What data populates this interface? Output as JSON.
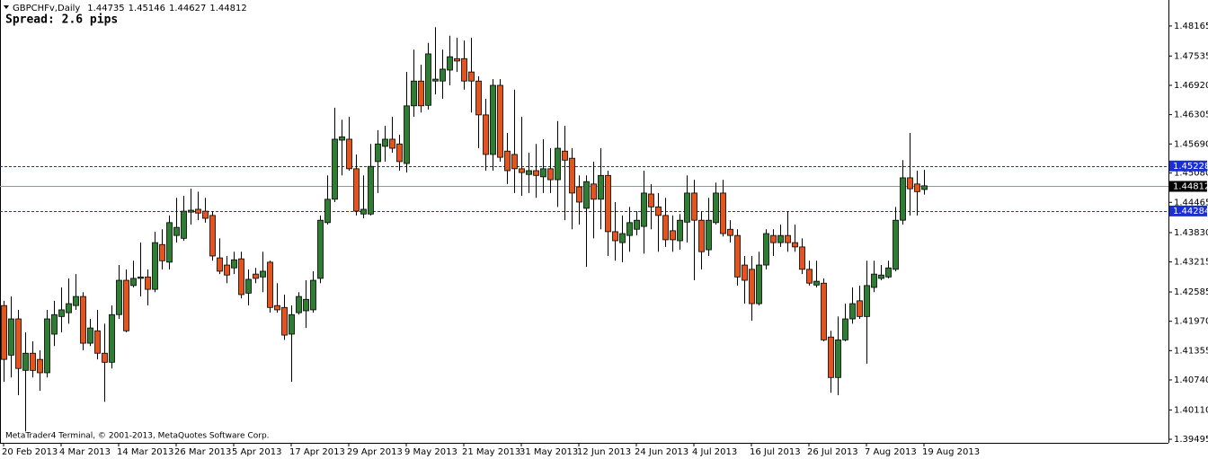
{
  "chart_data": {
    "type": "candlestick",
    "symbol": "GBPCHFv,Daily",
    "spread_label": "Spread: 2.6 pips",
    "footer": "MetaTrader4 Terminal, © 2001-2013, MetaQuotes Software Corp.",
    "categories": [
      "20 Feb 2013",
      null,
      null,
      null,
      null,
      null,
      null,
      null,
      "4 Mar 2013",
      null,
      null,
      null,
      null,
      null,
      null,
      null,
      "14 Mar 2013",
      null,
      null,
      null,
      null,
      null,
      null,
      null,
      "26 Mar 2013",
      null,
      null,
      null,
      null,
      null,
      null,
      null,
      "5 Apr 2013",
      null,
      null,
      null,
      null,
      null,
      null,
      null,
      "17 Apr 2013",
      null,
      null,
      null,
      null,
      null,
      null,
      null,
      "29 Apr 2013",
      null,
      null,
      null,
      null,
      null,
      null,
      null,
      "9 May 2013",
      null,
      null,
      null,
      null,
      null,
      null,
      null,
      "21 May 2013",
      null,
      null,
      null,
      null,
      null,
      null,
      null,
      "31 May 2013",
      null,
      null,
      null,
      null,
      null,
      null,
      null,
      "12 Jun 2013",
      null,
      null,
      null,
      null,
      null,
      null,
      null,
      "24 Jun 2013",
      null,
      null,
      null,
      null,
      null,
      null,
      null,
      "4 Jul 2013",
      null,
      null,
      null,
      null,
      null,
      null,
      null,
      "16 Jul 2013",
      null,
      null,
      null,
      null,
      null,
      null,
      null,
      "26 Jul 2013",
      null,
      null,
      null,
      null,
      null,
      null,
      null,
      "7 Aug 2013",
      null,
      null,
      null,
      null,
      null,
      null,
      null,
      "19 Aug 2013"
    ],
    "open": [
      1.423,
      1.4126,
      1.4202,
      1.4094,
      1.413,
      1.4117,
      1.4089,
      1.417,
      1.4207,
      1.4215,
      1.423,
      1.4249,
      1.4151,
      1.4177,
      1.413,
      1.4111,
      1.4211,
      1.4283,
      1.4272,
      1.4287,
      1.429,
      1.4264,
      1.4358,
      1.4321,
      1.4377,
      1.4371,
      1.4426,
      1.4432,
      1.4428,
      1.4419,
      1.433,
      1.4315,
      1.4309,
      1.4328,
      1.4256,
      1.4296,
      1.429,
      1.4321,
      1.423,
      1.4226,
      1.417,
      1.4215,
      1.4219,
      1.4221,
      1.4287,
      1.4404,
      1.4453,
      1.4577,
      1.4579,
      1.4517,
      1.4422,
      1.4422,
      1.4532,
      1.4564,
      1.4579,
      1.4569,
      1.4528,
      1.4649,
      1.4701,
      1.465,
      1.4701,
      1.4701,
      1.4724,
      1.4748,
      1.4748,
      1.472,
      1.4701,
      1.463,
      1.4547,
      1.4692,
      1.4554,
      1.4547,
      1.4517,
      1.4505,
      1.4513,
      1.45,
      1.4517,
      1.4494,
      1.4554,
      1.4539,
      1.4479,
      1.4434,
      1.4485,
      1.4453,
      1.4503,
      1.4385,
      1.4362,
      1.4377,
      1.439,
      1.4396,
      1.4464,
      1.4437,
      1.4419,
      1.4387,
      1.4366,
      1.4405,
      1.4466,
      1.4409,
      1.4347,
      1.4404,
      1.4466,
      1.439,
      1.4377,
      1.4315,
      1.4306,
      1.4234,
      1.4315,
      1.4377,
      1.4362,
      1.4377,
      1.4362,
      1.4353,
      1.4306,
      1.4273,
      1.4277,
      1.4164,
      1.4079,
      1.4158,
      1.4202,
      1.424,
      1.4207,
      1.4268,
      1.4287,
      1.429,
      1.4306,
      1.4409,
      1.4498,
      1.4485,
      1.44735
    ],
    "high": [
      1.424,
      1.4249,
      1.4221,
      1.4174,
      1.4155,
      1.4136,
      1.4221,
      1.424,
      1.4268,
      1.4287,
      1.4296,
      1.4258,
      1.4202,
      1.4221,
      1.4192,
      1.423,
      1.4315,
      1.4306,
      1.4324,
      1.4362,
      1.4306,
      1.4385,
      1.439,
      1.4419,
      1.4456,
      1.446,
      1.4475,
      1.4469,
      1.4456,
      1.4428,
      1.4371,
      1.4334,
      1.4343,
      1.4343,
      1.4306,
      1.4309,
      1.4343,
      1.4324,
      1.4277,
      1.4253,
      1.423,
      1.4258,
      1.4283,
      1.4302,
      1.4419,
      1.4503,
      1.4645,
      1.462,
      1.4626,
      1.4547,
      1.4503,
      1.4569,
      1.4598,
      1.4607,
      1.4626,
      1.4588,
      1.472,
      1.4767,
      1.4735,
      1.4781,
      1.4814,
      1.4767,
      1.4796,
      1.4792,
      1.4786,
      1.4792,
      1.4711,
      1.4664,
      1.4705,
      1.4705,
      1.4592,
      1.4683,
      1.4626,
      1.4551,
      1.4569,
      1.4579,
      1.456,
      1.4617,
      1.4607,
      1.456,
      1.4503,
      1.4503,
      1.4532,
      1.456,
      1.4513,
      1.4447,
      1.4419,
      1.4437,
      1.4428,
      1.4513,
      1.4485,
      1.4466,
      1.4456,
      1.4419,
      1.4422,
      1.4503,
      1.4494,
      1.4428,
      1.4456,
      1.4488,
      1.4494,
      1.4409,
      1.439,
      1.4334,
      1.4334,
      1.4343,
      1.439,
      1.439,
      1.44,
      1.4428,
      1.44,
      1.4371,
      1.4324,
      1.4324,
      1.4287,
      1.4177,
      1.4207,
      1.4234,
      1.4268,
      1.4272,
      1.4324,
      1.4324,
      1.4315,
      1.4324,
      1.4437,
      1.4535,
      1.4592,
      1.4513,
      1.45146
    ],
    "low": [
      1.407,
      1.4079,
      1.4042,
      1.3966,
      1.4079,
      1.4051,
      1.4079,
      1.4145,
      1.4174,
      1.4192,
      1.4221,
      1.4136,
      1.4145,
      1.4117,
      1.4028,
      1.4098,
      1.4202,
      1.4174,
      1.4268,
      1.4249,
      1.423,
      1.4258,
      1.4306,
      1.4306,
      1.4362,
      1.4366,
      1.44,
      1.4409,
      1.4404,
      1.4324,
      1.4296,
      1.4277,
      1.4296,
      1.4245,
      1.423,
      1.4277,
      1.4258,
      1.4215,
      1.4215,
      1.4158,
      1.407,
      1.4211,
      1.4183,
      1.4215,
      1.4277,
      1.44,
      1.4447,
      1.4503,
      1.4513,
      1.4419,
      1.4413,
      1.4419,
      1.4466,
      1.4532,
      1.4551,
      1.4513,
      1.4509,
      1.4626,
      1.4635,
      1.4641,
      1.4673,
      1.4664,
      1.4692,
      1.472,
      1.4683,
      1.4635,
      1.456,
      1.4513,
      1.4513,
      1.4532,
      1.4485,
      1.4466,
      1.446,
      1.4466,
      1.4456,
      1.4466,
      1.4466,
      1.4437,
      1.4409,
      1.439,
      1.44,
      1.4311,
      1.4371,
      1.439,
      1.4334,
      1.4324,
      1.4321,
      1.4343,
      1.4377,
      1.4339,
      1.439,
      1.4343,
      1.4353,
      1.4343,
      1.4347,
      1.4362,
      1.4283,
      1.4306,
      1.4334,
      1.44,
      1.4375,
      1.4362,
      1.4272,
      1.4234,
      1.4198,
      1.423,
      1.4306,
      1.4334,
      1.4353,
      1.4343,
      1.4343,
      1.4296,
      1.4272,
      1.4268,
      1.4155,
      1.4047,
      1.4042,
      1.4155,
      1.4192,
      1.4202,
      1.4108,
      1.4258,
      1.4283,
      1.4287,
      1.4302,
      1.44,
      1.4419,
      1.4419,
      1.44627
    ],
    "close": [
      1.4117,
      1.4202,
      1.4098,
      1.413,
      1.4094,
      1.4089,
      1.4202,
      1.4211,
      1.4221,
      1.4234,
      1.4249,
      1.4151,
      1.4183,
      1.413,
      1.4111,
      1.4211,
      1.4283,
      1.4177,
      1.4287,
      1.429,
      1.4264,
      1.4362,
      1.4324,
      1.4404,
      1.4394,
      1.4428,
      1.443,
      1.4424,
      1.4413,
      1.4334,
      1.4302,
      1.4294,
      1.4326,
      1.4253,
      1.4285,
      1.4287,
      1.4302,
      1.4226,
      1.4221,
      1.4168,
      1.4211,
      1.4249,
      1.4243,
      1.4283,
      1.4409,
      1.4453,
      1.4579,
      1.4584,
      1.4517,
      1.4428,
      1.4432,
      1.4522,
      1.4569,
      1.4579,
      1.456,
      1.4532,
      1.4649,
      1.4701,
      1.4649,
      1.4758,
      1.4705,
      1.4726,
      1.4752,
      1.4743,
      1.4701,
      1.4701,
      1.463,
      1.4547,
      1.4692,
      1.4541,
      1.4513,
      1.4517,
      1.4509,
      1.4513,
      1.4503,
      1.4517,
      1.4494,
      1.456,
      1.4535,
      1.4466,
      1.4447,
      1.449,
      1.4453,
      1.4503,
      1.4385,
      1.4366,
      1.4381,
      1.4404,
      1.4409,
      1.4466,
      1.4437,
      1.4419,
      1.4368,
      1.4368,
      1.4409,
      1.4466,
      1.4409,
      1.4343,
      1.4409,
      1.4466,
      1.4381,
      1.4377,
      1.429,
      1.4283,
      1.4234,
      1.4315,
      1.4381,
      1.4362,
      1.4377,
      1.4362,
      1.4353,
      1.4306,
      1.4277,
      1.4281,
      1.4158,
      1.4079,
      1.4158,
      1.4202,
      1.4234,
      1.4207,
      1.4272,
      1.4296,
      1.4294,
      1.4309,
      1.4409,
      1.4498,
      1.4475,
      1.4469,
      1.44812
    ],
    "up_color": "#2e7d32",
    "down_color": "#e4541c",
    "ylim": [
      1.3942,
      1.4871
    ],
    "yticks": [
      1.48165,
      1.47535,
      {
        "value": 1.4692,
        "label": "1.46920"
      },
      1.46305,
      {
        "value": 1.4569,
        "label": "1.45690"
      },
      {
        "value": 1.4508,
        "label": "1.45080"
      },
      1.44465,
      {
        "value": 1.4383,
        "label": "1.43830"
      },
      1.43215,
      1.42585,
      {
        "value": 1.4197,
        "label": "1.41970"
      },
      1.41355,
      {
        "value": 1.4074,
        "label": "1.40740"
      },
      {
        "value": 1.4011,
        "label": "1.40110"
      },
      1.39495
    ],
    "levels": [
      1.45228,
      1.44284
    ],
    "level_color": "#1a2fd0",
    "bid_color": "#000000"
  }
}
